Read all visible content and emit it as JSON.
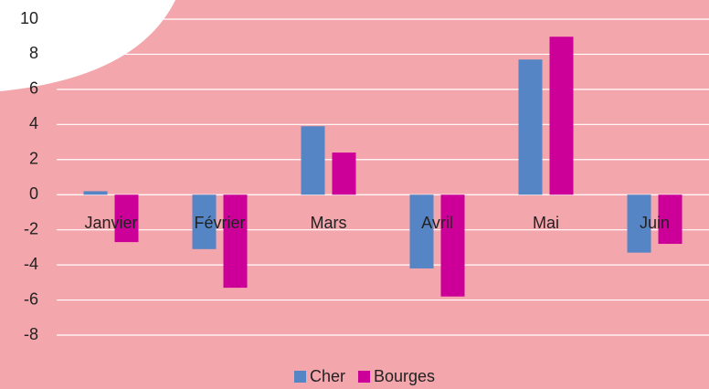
{
  "chart_data": {
    "type": "bar",
    "categories": [
      "Janvier",
      "Février",
      "Mars",
      "Avril",
      "Mai",
      "Juin"
    ],
    "series": [
      {
        "name": "Cher",
        "color": "#5585c4",
        "values": [
          0.2,
          -3.1,
          3.9,
          -4.2,
          7.7,
          -3.3
        ]
      },
      {
        "name": "Bourges",
        "color": "#cc0099",
        "values": [
          -2.7,
          -5.3,
          2.4,
          -5.8,
          9.0,
          -2.8
        ]
      }
    ],
    "ylim": [
      -8,
      10
    ],
    "yticks": [
      -8,
      -6,
      -4,
      -2,
      0,
      2,
      4,
      6,
      8,
      10
    ],
    "grid": true,
    "legend": "bottom"
  }
}
